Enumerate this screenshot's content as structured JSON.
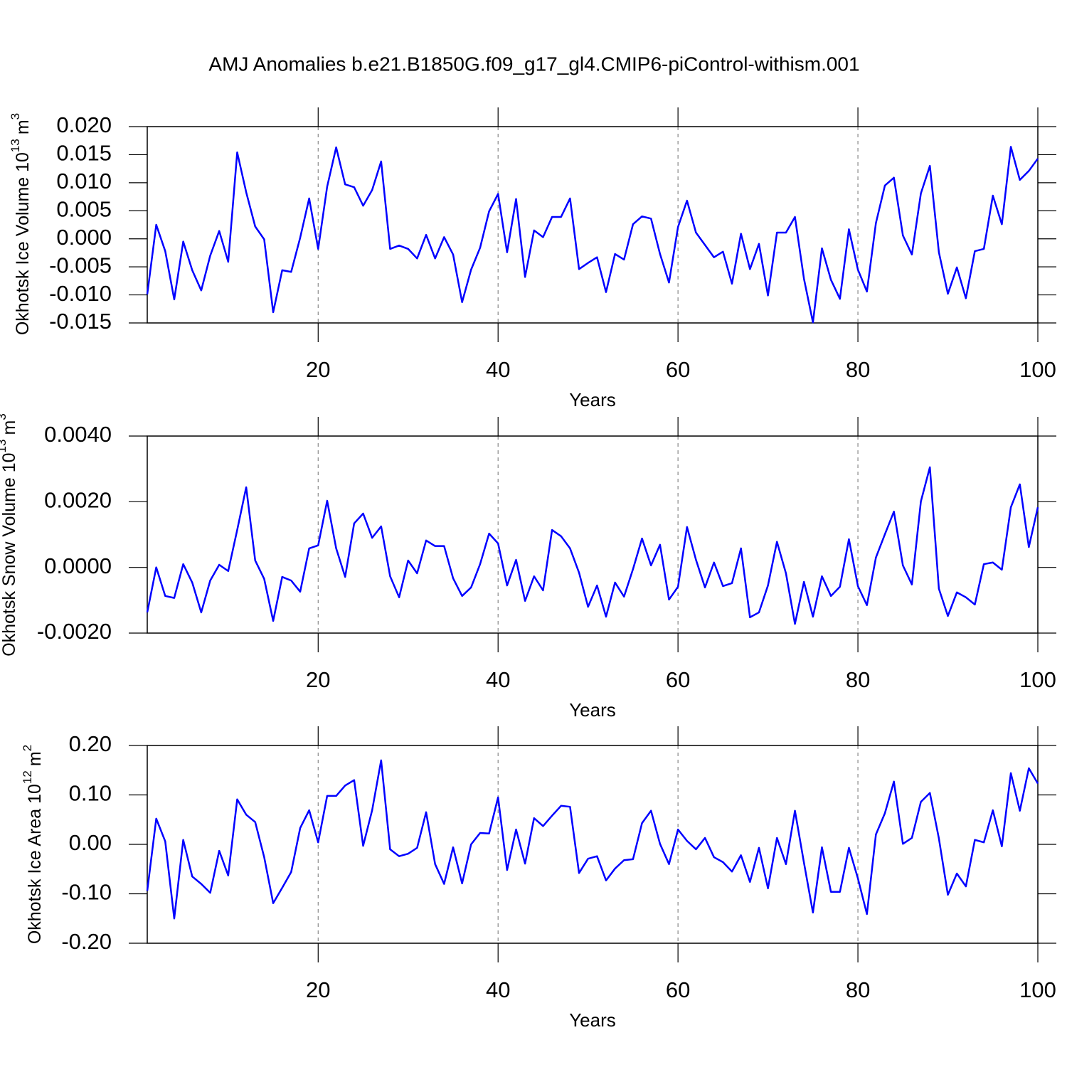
{
  "title": "AMJ Anomalies b.e21.B1850G.f09_g17_gl4.CMIP6-piControl-withism.001",
  "chart_data": [
    {
      "type": "line",
      "ylabel": "Okhotsk Ice Volume 10",
      "ylabel_exponent": "13",
      "ylabel_unit": "m",
      "ylabel_unit_exponent": "3",
      "xlabel": "Years",
      "x": [
        1,
        2,
        3,
        4,
        5,
        6,
        7,
        8,
        9,
        10,
        11,
        12,
        13,
        14,
        15,
        16,
        17,
        18,
        19,
        20,
        21,
        22,
        23,
        24,
        25,
        26,
        27,
        28,
        29,
        30,
        31,
        32,
        33,
        34,
        35,
        36,
        37,
        38,
        39,
        40,
        41,
        42,
        43,
        44,
        45,
        46,
        47,
        48,
        49,
        50,
        51,
        52,
        53,
        54,
        55,
        56,
        57,
        58,
        59,
        60,
        61,
        62,
        63,
        64,
        65,
        66,
        67,
        68,
        69,
        70,
        71,
        72,
        73,
        74,
        75,
        76,
        77,
        78,
        79,
        80,
        81,
        82,
        83,
        84,
        85,
        86,
        87,
        88,
        89,
        90,
        91,
        92,
        93,
        94,
        95,
        96,
        97,
        98,
        99,
        100
      ],
      "values": [
        -0.0099,
        0.0025,
        -0.0022,
        -0.0108,
        -0.0005,
        -0.0056,
        -0.0092,
        -0.003,
        0.0014,
        -0.0041,
        0.0154,
        0.0083,
        0.0022,
        -0.0001,
        -0.0131,
        -0.0056,
        -0.0059,
        0.0002,
        0.0072,
        -0.0018,
        0.0093,
        0.0163,
        0.0097,
        0.0092,
        0.0059,
        0.0087,
        0.0138,
        -0.0018,
        -0.0012,
        -0.0018,
        -0.0035,
        0.0007,
        -0.0035,
        0.0003,
        -0.0028,
        -0.0113,
        -0.0055,
        -0.0016,
        0.0049,
        0.008,
        -0.0024,
        0.0071,
        -0.0068,
        0.0015,
        0.0003,
        0.0039,
        0.0039,
        0.0072,
        -0.0054,
        -0.0043,
        -0.0033,
        -0.0095,
        -0.0027,
        -0.0037,
        0.0026,
        0.004,
        0.0036,
        -0.0027,
        -0.0078,
        0.0021,
        0.0068,
        0.0011,
        -0.0011,
        -0.0033,
        -0.0023,
        -0.008,
        0.0009,
        -0.0054,
        -0.0009,
        -0.0101,
        0.0011,
        0.0011,
        0.0039,
        -0.0071,
        -0.0149,
        -0.0017,
        -0.0073,
        -0.0107,
        0.0017,
        -0.0055,
        -0.0094,
        0.0028,
        0.0095,
        0.0109,
        0.0006,
        -0.0028,
        0.0081,
        0.013,
        -0.0024,
        -0.0098,
        -0.0051,
        -0.0106,
        -0.0022,
        -0.0018,
        0.0077,
        0.0026,
        0.0164,
        0.0105,
        0.0121,
        0.0143
      ],
      "color": "#0000ff",
      "xlim": [
        1,
        100
      ],
      "xticks": [
        20,
        40,
        60,
        80,
        100
      ],
      "ylim": [
        -0.015,
        0.02
      ],
      "yticks": [
        {
          "value": -0.015,
          "label": "-0.015"
        },
        {
          "value": -0.01,
          "label": "-0.010"
        },
        {
          "value": -0.005,
          "label": "-0.005"
        },
        {
          "value": 0,
          "label": "0.000"
        },
        {
          "value": 0.005,
          "label": "0.005"
        },
        {
          "value": 0.01,
          "label": "0.010"
        },
        {
          "value": 0.015,
          "label": "0.015"
        },
        {
          "value": 0.02,
          "label": "0.020"
        }
      ],
      "grid": true
    },
    {
      "type": "line",
      "ylabel": "Okhotsk Snow Volume 10",
      "ylabel_exponent": "13",
      "ylabel_unit": "m",
      "ylabel_unit_exponent": "3",
      "xlabel": "Years",
      "x": [
        1,
        2,
        3,
        4,
        5,
        6,
        7,
        8,
        9,
        10,
        11,
        12,
        13,
        14,
        15,
        16,
        17,
        18,
        19,
        20,
        21,
        22,
        23,
        24,
        25,
        26,
        27,
        28,
        29,
        30,
        31,
        32,
        33,
        34,
        35,
        36,
        37,
        38,
        39,
        40,
        41,
        42,
        43,
        44,
        45,
        46,
        47,
        48,
        49,
        50,
        51,
        52,
        53,
        54,
        55,
        56,
        57,
        58,
        59,
        60,
        61,
        62,
        63,
        64,
        65,
        66,
        67,
        68,
        69,
        70,
        71,
        72,
        73,
        74,
        75,
        76,
        77,
        78,
        79,
        80,
        81,
        82,
        83,
        84,
        85,
        86,
        87,
        88,
        89,
        90,
        91,
        92,
        93,
        94,
        95,
        96,
        97,
        98,
        99,
        100
      ],
      "values": [
        -0.00137,
        0.0,
        -0.00087,
        -0.00093,
        0.0001,
        -0.00046,
        -0.00137,
        -0.0004,
        8e-05,
        -0.00011,
        0.00114,
        0.00244,
        0.00021,
        -0.00035,
        -0.00163,
        -0.00029,
        -0.0004,
        -0.00074,
        0.00058,
        0.00067,
        0.00203,
        0.00058,
        -0.00029,
        0.00134,
        0.00164,
        0.0009,
        0.00125,
        -0.00027,
        -0.00091,
        0.00021,
        -0.00018,
        0.00082,
        0.00065,
        0.00065,
        -0.00033,
        -0.00087,
        -0.00061,
        0.0001,
        0.00103,
        0.00073,
        -0.00055,
        0.00023,
        -0.00102,
        -0.00027,
        -0.0007,
        0.00114,
        0.00095,
        0.00058,
        -0.00016,
        -0.0012,
        -0.00055,
        -0.0015,
        -0.00046,
        -0.00089,
        -5e-05,
        0.00088,
        6e-05,
        0.00069,
        -0.00098,
        -0.00059,
        0.00123,
        0.00023,
        -0.00061,
        0.00015,
        -0.00057,
        -0.00048,
        0.00058,
        -0.00152,
        -0.00137,
        -0.00055,
        0.00078,
        -0.00018,
        -0.00172,
        -0.00044,
        -0.0015,
        -0.00027,
        -0.00087,
        -0.00059,
        0.00086,
        -0.00057,
        -0.00115,
        0.0003,
        0.00101,
        0.0017,
        6e-05,
        -0.00052,
        0.00201,
        0.00305,
        -0.00065,
        -0.00148,
        -0.00076,
        -0.00091,
        -0.00113,
        0.0001,
        0.00015,
        -7e-05,
        0.00183,
        0.00253,
        0.00062,
        0.00183
      ],
      "color": "#0000ff",
      "xlim": [
        1,
        100
      ],
      "xticks": [
        20,
        40,
        60,
        80,
        100
      ],
      "ylim": [
        -0.002,
        0.004
      ],
      "yticks": [
        {
          "value": -0.002,
          "label": "-0.0020"
        },
        {
          "value": 0,
          "label": "0.0000"
        },
        {
          "value": 0.002,
          "label": "0.0020"
        },
        {
          "value": 0.004,
          "label": "0.0040"
        }
      ],
      "grid": true
    },
    {
      "type": "line",
      "ylabel": "Okhotsk Ice Area 10",
      "ylabel_exponent": "12",
      "ylabel_unit": "m",
      "ylabel_unit_exponent": "2",
      "xlabel": "Years",
      "x": [
        1,
        2,
        3,
        4,
        5,
        6,
        7,
        8,
        9,
        10,
        11,
        12,
        13,
        14,
        15,
        16,
        17,
        18,
        19,
        20,
        21,
        22,
        23,
        24,
        25,
        26,
        27,
        28,
        29,
        30,
        31,
        32,
        33,
        34,
        35,
        36,
        37,
        38,
        39,
        40,
        41,
        42,
        43,
        44,
        45,
        46,
        47,
        48,
        49,
        50,
        51,
        52,
        53,
        54,
        55,
        56,
        57,
        58,
        59,
        60,
        61,
        62,
        63,
        64,
        65,
        66,
        67,
        68,
        69,
        70,
        71,
        72,
        73,
        74,
        75,
        76,
        77,
        78,
        79,
        80,
        81,
        82,
        83,
        84,
        85,
        86,
        87,
        88,
        89,
        90,
        91,
        92,
        93,
        94,
        95,
        96,
        97,
        98,
        99,
        100
      ],
      "values": [
        -0.094,
        0.052,
        0.006,
        -0.15,
        0.009,
        -0.065,
        -0.08,
        -0.098,
        -0.013,
        -0.063,
        0.091,
        0.06,
        0.045,
        -0.026,
        -0.119,
        -0.088,
        -0.056,
        0.033,
        0.069,
        0.004,
        0.098,
        0.098,
        0.119,
        0.13,
        -0.003,
        0.069,
        0.17,
        -0.01,
        -0.024,
        -0.019,
        -0.007,
        0.065,
        -0.04,
        -0.08,
        -0.006,
        -0.079,
        0.0,
        0.023,
        0.022,
        0.095,
        -0.052,
        0.03,
        -0.039,
        0.053,
        0.037,
        0.058,
        0.078,
        0.076,
        -0.058,
        -0.029,
        -0.024,
        -0.073,
        -0.049,
        -0.032,
        -0.03,
        0.043,
        0.068,
        0.001,
        -0.04,
        0.03,
        0.007,
        -0.01,
        0.013,
        -0.026,
        -0.036,
        -0.055,
        -0.022,
        -0.076,
        -0.007,
        -0.089,
        0.013,
        -0.04,
        0.068,
        -0.037,
        -0.138,
        -0.006,
        -0.096,
        -0.096,
        -0.007,
        -0.069,
        -0.141,
        0.02,
        0.063,
        0.127,
        0.001,
        0.013,
        0.086,
        0.104,
        0.012,
        -0.102,
        -0.059,
        -0.085,
        0.009,
        0.004,
        0.069,
        -0.004,
        0.144,
        0.068,
        0.154,
        0.123
      ],
      "color": "#0000ff",
      "xlim": [
        1,
        100
      ],
      "xticks": [
        20,
        40,
        60,
        80,
        100
      ],
      "ylim": [
        -0.2,
        0.2
      ],
      "yticks": [
        {
          "value": -0.2,
          "label": "-0.20"
        },
        {
          "value": -0.1,
          "label": "-0.10"
        },
        {
          "value": 0,
          "label": "0.00"
        },
        {
          "value": 0.1,
          "label": "0.10"
        },
        {
          "value": 0.2,
          "label": "0.20"
        }
      ],
      "grid": true
    }
  ]
}
